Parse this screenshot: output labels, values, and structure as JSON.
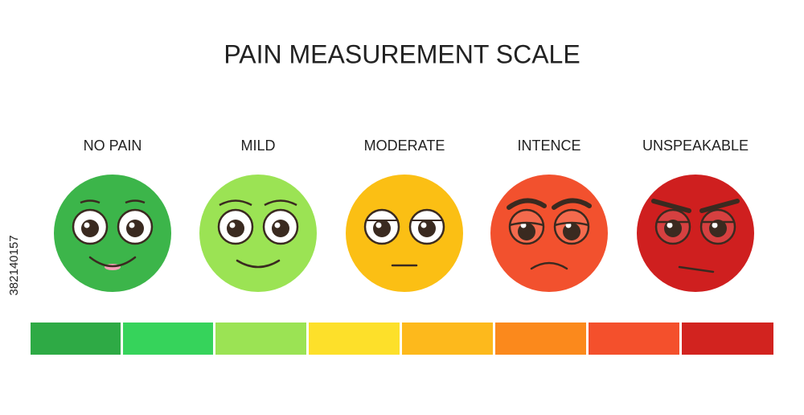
{
  "title": "PAIN MEASUREMENT SCALE",
  "levels": [
    {
      "label": "NO PAIN"
    },
    {
      "label": "MILD"
    },
    {
      "label": "MODERATE"
    },
    {
      "label": "INTENCE"
    },
    {
      "label": "UNSPEAKABLE"
    }
  ],
  "side_id": "382140157"
}
